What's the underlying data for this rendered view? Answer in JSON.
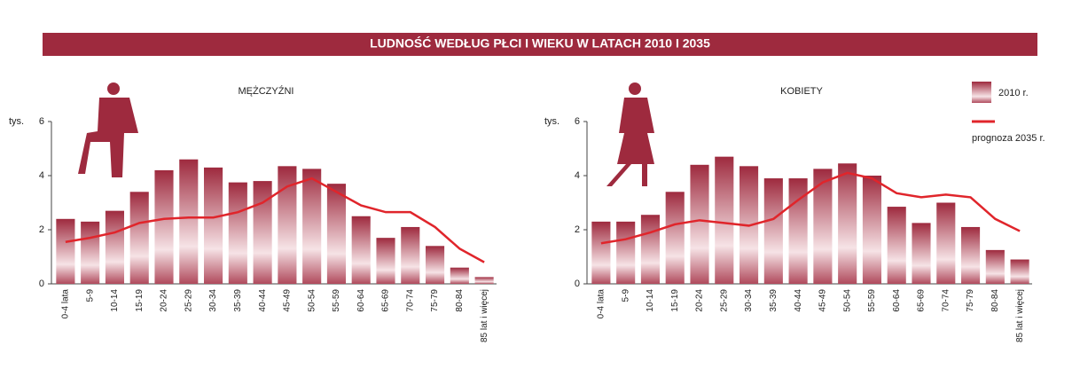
{
  "title": "LUDNOŚĆ WEDŁUG PŁCI I WIEKU W LATACH 2010 I 2035",
  "chart_data": [
    {
      "type": "bar",
      "title": "MĘŻCZYŹNI",
      "y_label": "tys.",
      "categories": [
        "0-4 lata",
        "5-9",
        "10-14",
        "15-19",
        "20-24",
        "25-29",
        "30-34",
        "35-39",
        "40-44",
        "45-49",
        "50-54",
        "55-59",
        "60-64",
        "65-69",
        "70-74",
        "75-79",
        "80-84",
        "85 lat i więcej"
      ],
      "series": [
        {
          "name": "2010 r.",
          "type": "bar",
          "color": "#9e2a3e",
          "values": [
            2.4,
            2.3,
            2.7,
            3.4,
            4.2,
            4.6,
            4.3,
            3.75,
            3.8,
            4.35,
            4.25,
            3.7,
            2.5,
            1.7,
            2.1,
            1.4,
            0.6,
            0.25
          ]
        },
        {
          "name": "prognoza 2035 r.",
          "type": "line",
          "color": "#e0252b",
          "values": [
            1.55,
            1.7,
            1.9,
            2.25,
            2.4,
            2.45,
            2.45,
            2.65,
            3.0,
            3.6,
            3.9,
            3.4,
            2.9,
            2.65,
            2.65,
            2.1,
            1.3,
            0.8
          ]
        }
      ],
      "ylim": [
        0,
        6
      ],
      "yticks": [
        0,
        2,
        4,
        6
      ]
    },
    {
      "type": "bar",
      "title": "KOBIETY",
      "y_label": "tys.",
      "categories": [
        "0-4 lata",
        "5-9",
        "10-14",
        "15-19",
        "20-24",
        "25-29",
        "30-34",
        "35-39",
        "40-44",
        "45-49",
        "50-54",
        "55-59",
        "60-64",
        "65-69",
        "70-74",
        "75-79",
        "80-84",
        "85 lat i więcej"
      ],
      "series": [
        {
          "type": "bar",
          "color": "#9e2a3e",
          "values": [
            2.3,
            2.3,
            2.55,
            3.4,
            4.4,
            4.7,
            4.35,
            3.9,
            3.9,
            4.25,
            4.45,
            4.0,
            2.85,
            2.25,
            3.0,
            2.1,
            1.25,
            0.9
          ]
        },
        {
          "type": "line",
          "color": "#e0252b",
          "values": [
            1.5,
            1.65,
            1.9,
            2.2,
            2.35,
            2.25,
            2.15,
            2.4,
            3.1,
            3.75,
            4.1,
            3.9,
            3.35,
            3.2,
            3.3,
            3.2,
            2.4,
            1.95
          ]
        }
      ],
      "ylim": [
        0,
        6
      ],
      "yticks": [
        0,
        2,
        4,
        6
      ]
    }
  ]
}
